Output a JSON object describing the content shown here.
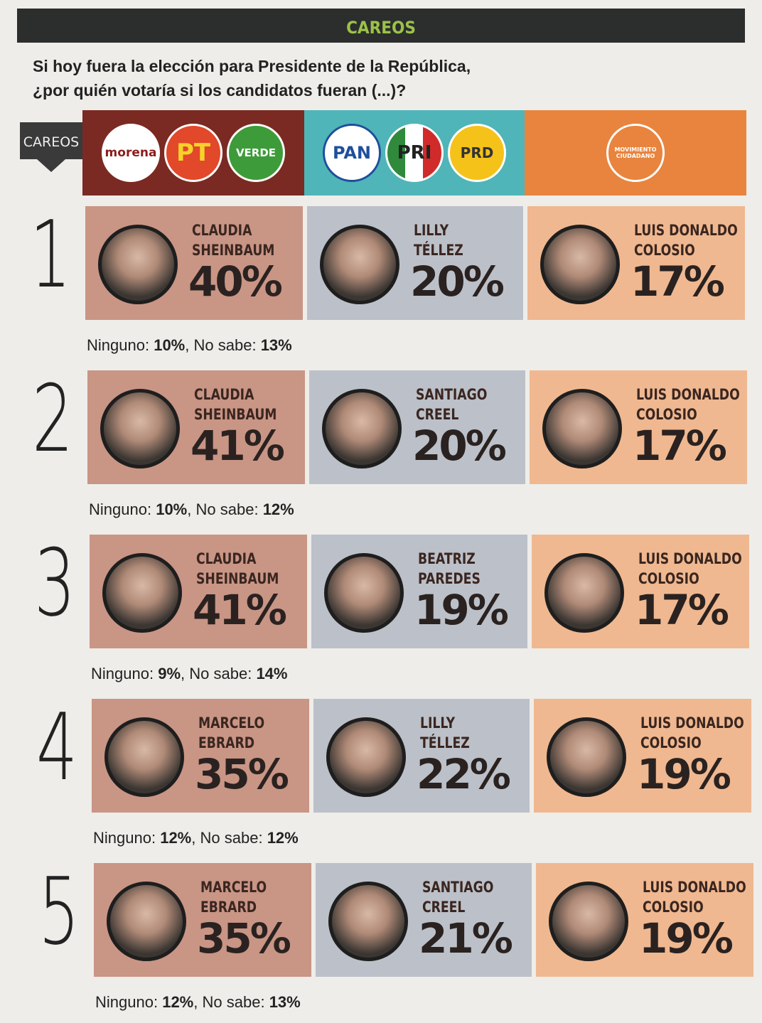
{
  "header": {
    "section": "CAREOS",
    "question_lines": [
      "Si hoy fuera la elección para Presidente de la República,",
      "¿por quién votaría si los candidatos fueran (...)?"
    ]
  },
  "parties": {
    "tag": "CAREOS",
    "groups": [
      {
        "logos": [
          "morena",
          "PT",
          "VERDE"
        ]
      },
      {
        "logos": [
          "PAN",
          "PRI",
          "PRD"
        ]
      },
      {
        "logos": [
          "MOVIMIENTO CIUDADANO"
        ]
      }
    ]
  },
  "matchups": [
    {
      "number": "1",
      "candidates": [
        {
          "name_lines": [
            "CLAUDIA",
            "SHEINBAUM"
          ],
          "percent": "40%"
        },
        {
          "name_lines": [
            "LILLY",
            "TÉLLEZ"
          ],
          "percent": "20%"
        },
        {
          "name_lines": [
            "LUIS DONALDO",
            "COLOSIO"
          ],
          "percent": "17%"
        }
      ],
      "ninguno": "10%",
      "no_sabe": "13%"
    },
    {
      "number": "2",
      "candidates": [
        {
          "name_lines": [
            "CLAUDIA",
            "SHEINBAUM"
          ],
          "percent": "41%"
        },
        {
          "name_lines": [
            "SANTIAGO",
            "CREEL"
          ],
          "percent": "20%"
        },
        {
          "name_lines": [
            "LUIS DONALDO",
            "COLOSIO"
          ],
          "percent": "17%"
        }
      ],
      "ninguno": "10%",
      "no_sabe": "12%"
    },
    {
      "number": "3",
      "candidates": [
        {
          "name_lines": [
            "CLAUDIA",
            "SHEINBAUM"
          ],
          "percent": "41%"
        },
        {
          "name_lines": [
            "BEATRIZ",
            "PAREDES"
          ],
          "percent": "19%"
        },
        {
          "name_lines": [
            "LUIS DONALDO",
            "COLOSIO"
          ],
          "percent": "17%"
        }
      ],
      "ninguno": "9%",
      "no_sabe": "14%"
    },
    {
      "number": "4",
      "candidates": [
        {
          "name_lines": [
            "MARCELO",
            "EBRARD"
          ],
          "percent": "35%"
        },
        {
          "name_lines": [
            "LILLY",
            "TÉLLEZ"
          ],
          "percent": "22%"
        },
        {
          "name_lines": [
            "LUIS DONALDO",
            "COLOSIO"
          ],
          "percent": "19%"
        }
      ],
      "ninguno": "12%",
      "no_sabe": "12%"
    },
    {
      "number": "5",
      "candidates": [
        {
          "name_lines": [
            "MARCELO",
            "EBRARD"
          ],
          "percent": "35%"
        },
        {
          "name_lines": [
            "SANTIAGO",
            "CREEL"
          ],
          "percent": "21%"
        },
        {
          "name_lines": [
            "LUIS DONALDO",
            "COLOSIO"
          ],
          "percent": "19%"
        }
      ],
      "ninguno": "12%",
      "no_sabe": "13%"
    }
  ],
  "footer_labels": {
    "ninguno": "Ninguno:",
    "separator": ",",
    "no_sabe": "No sabe:"
  }
}
